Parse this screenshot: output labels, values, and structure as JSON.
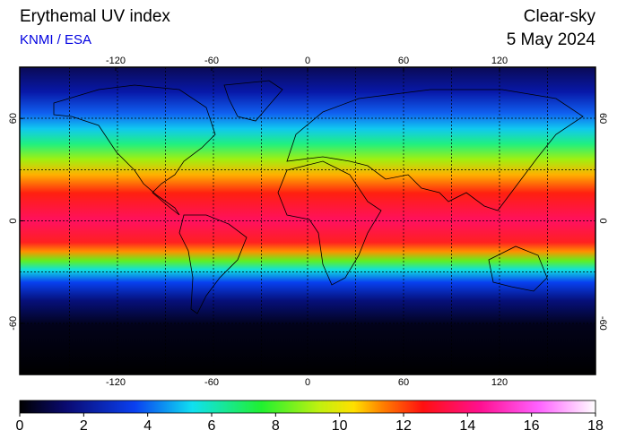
{
  "header": {
    "title": "Erythemal UV index",
    "source": "KNMI / ESA",
    "condition": "Clear-sky",
    "date": "5 May 2024"
  },
  "map": {
    "xlim": [
      -180,
      180
    ],
    "ylim": [
      -90,
      90
    ],
    "xticks": [
      -120,
      -60,
      0,
      60,
      120
    ],
    "yticks": [
      60,
      0,
      -60
    ]
  },
  "colorbar": {
    "lim": [
      0,
      18
    ],
    "ticks": [
      0,
      2,
      4,
      6,
      8,
      10,
      12,
      14,
      16,
      18
    ]
  }
}
